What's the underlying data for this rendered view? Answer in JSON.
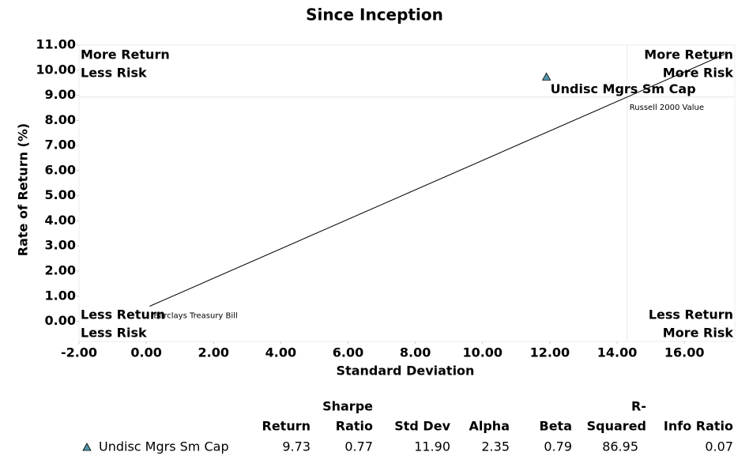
{
  "chart_data": {
    "type": "scatter",
    "title": "Since Inception",
    "x_label": "Standard Deviation",
    "y_label": "Rate of Return (%)",
    "xlim": [
      -2,
      17.5
    ],
    "ylim": [
      -0.8,
      11
    ],
    "xticks": [
      {
        "value": -2,
        "label": "-2.00"
      },
      {
        "value": 0,
        "label": "0.00"
      },
      {
        "value": 2,
        "label": "2.00"
      },
      {
        "value": 4,
        "label": "4.00"
      },
      {
        "value": 6,
        "label": "6.00"
      },
      {
        "value": 8,
        "label": "8.00"
      },
      {
        "value": 10,
        "label": "10.00"
      },
      {
        "value": 12,
        "label": "12.00"
      },
      {
        "value": 14,
        "label": "14.00"
      },
      {
        "value": 16,
        "label": "16.00"
      }
    ],
    "yticks": [
      {
        "value": 0,
        "label": "0.00"
      },
      {
        "value": 1,
        "label": "1.00"
      },
      {
        "value": 2,
        "label": "2.00"
      },
      {
        "value": 3,
        "label": "3.00"
      },
      {
        "value": 4,
        "label": "4.00"
      },
      {
        "value": 5,
        "label": "5.00"
      },
      {
        "value": 6,
        "label": "6.00"
      },
      {
        "value": 7,
        "label": "7.00"
      },
      {
        "value": 8,
        "label": "8.00"
      },
      {
        "value": 9,
        "label": "9.00"
      },
      {
        "value": 10,
        "label": "10.00"
      },
      {
        "value": 11,
        "label": "11.00"
      }
    ],
    "quadrants": {
      "top_left": [
        "More Return",
        "Less Risk"
      ],
      "top_right": [
        "More Return",
        "More Risk"
      ],
      "bottom_left": [
        "Less Return",
        "Less Risk"
      ],
      "bottom_right": [
        "Less Return",
        "More Risk"
      ]
    },
    "points": [
      {
        "name": "Undisc Mgrs Sm Cap",
        "x": 11.9,
        "y": 9.73,
        "color": "#4f94a8"
      }
    ],
    "benchmarks": [
      {
        "name": "Russell 2000 Value",
        "x": 14.3,
        "y": 8.93
      },
      {
        "name": "Barclays Treasury Bill",
        "x": 0.1,
        "y": 0.6
      }
    ],
    "table": {
      "headers": [
        [
          "Return"
        ],
        [
          "Sharpe",
          "Ratio"
        ],
        [
          "Std Dev"
        ],
        [
          "Alpha"
        ],
        [
          "Beta"
        ],
        [
          "R-",
          "Squared"
        ],
        [
          "Info Ratio"
        ]
      ],
      "rows": [
        {
          "name": "Undisc Mgrs Sm Cap",
          "values": [
            "9.73",
            "0.77",
            "11.90",
            "2.35",
            "0.79",
            "86.95",
            "0.07"
          ]
        }
      ]
    }
  }
}
